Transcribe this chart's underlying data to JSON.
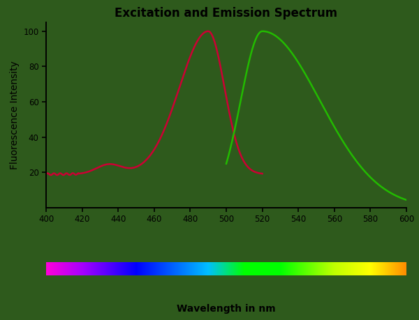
{
  "title": "Excitation and Emission Spectrum",
  "xlabel": "Wavelength in nm",
  "ylabel": "Fluorescence Intensity",
  "xlim": [
    400,
    600
  ],
  "ylim": [
    0,
    105
  ],
  "yticks": [
    20,
    40,
    60,
    80,
    100
  ],
  "xticks": [
    400,
    420,
    440,
    460,
    480,
    500,
    520,
    540,
    560,
    580,
    600
  ],
  "bg_color": "#2e5a1c",
  "excitation_color": "#cc0033",
  "emission_color": "#22bb00",
  "title_fontsize": 12,
  "axis_label_fontsize": 10
}
